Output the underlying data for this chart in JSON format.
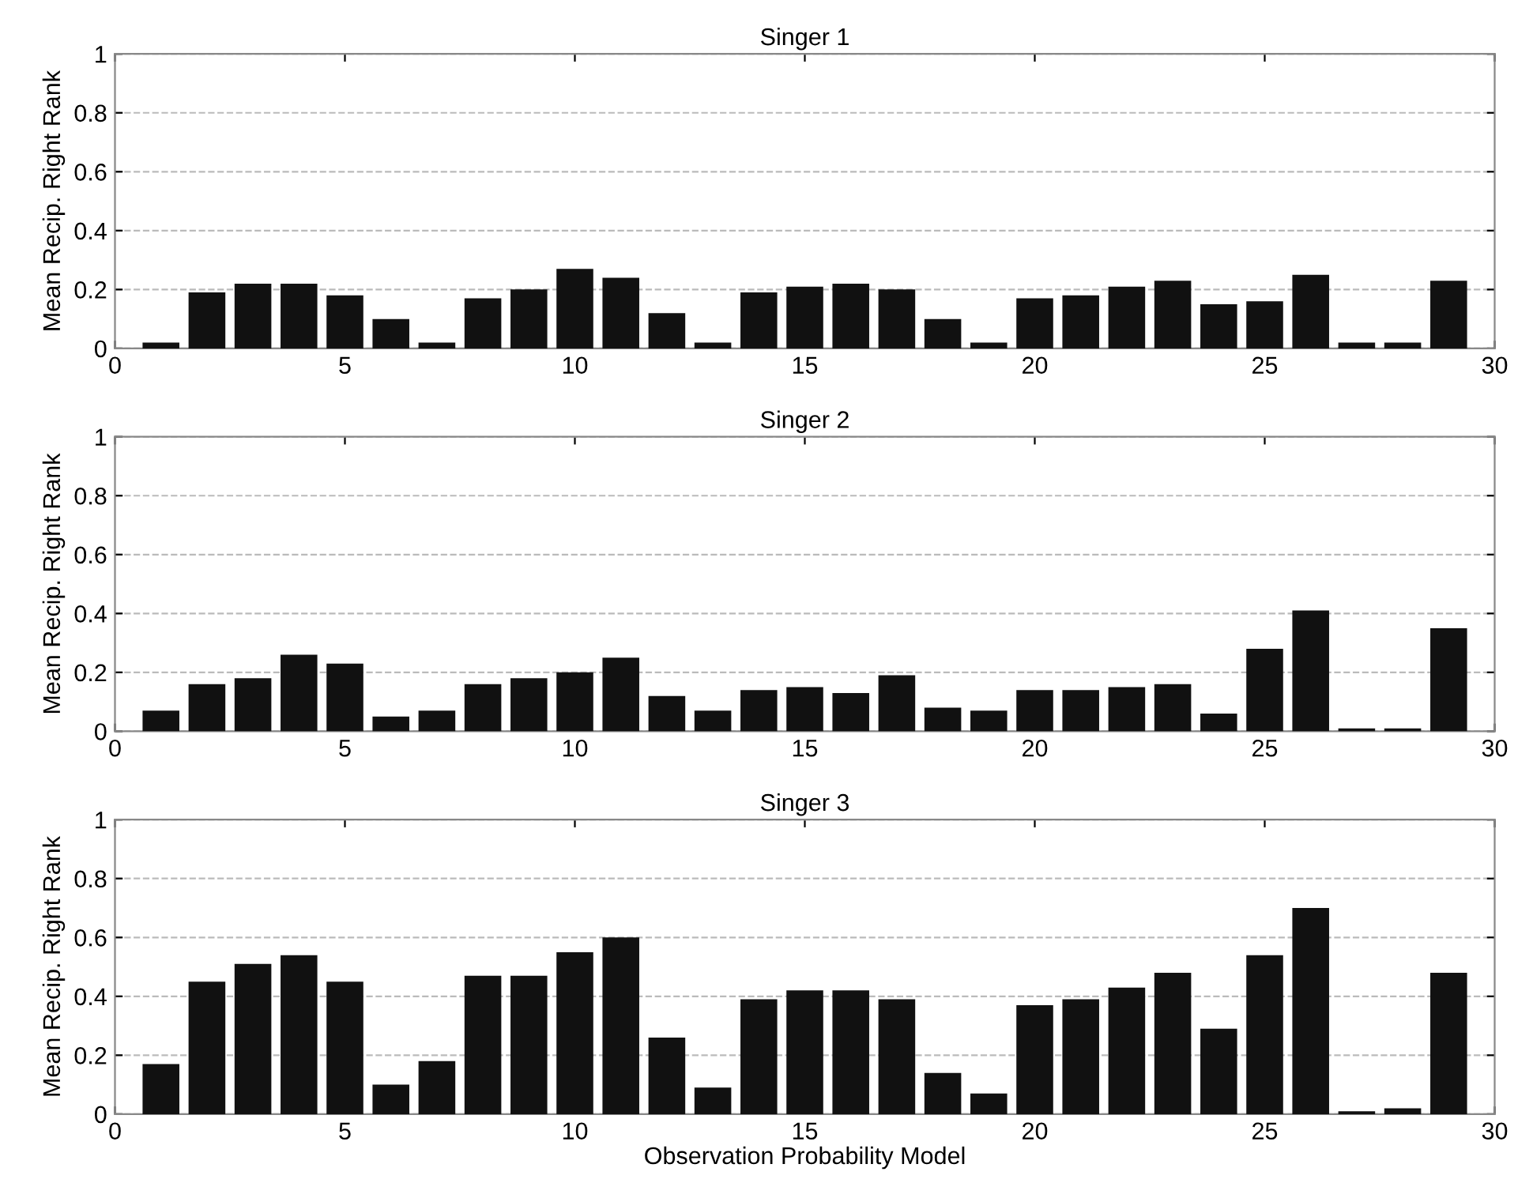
{
  "chart_data": [
    {
      "type": "bar",
      "title": "Singer 1",
      "ylabel": "Mean Recip. Right Rank",
      "x": [
        1,
        2,
        3,
        4,
        5,
        6,
        7,
        8,
        9,
        10,
        11,
        12,
        13,
        14,
        15,
        16,
        17,
        18,
        19,
        20,
        21,
        22,
        23,
        24,
        25,
        26,
        27,
        28,
        29
      ],
      "series": [
        {
          "color": "#111111",
          "values": [
            0.02,
            0.19,
            0.22,
            0.22,
            0.18,
            0.1,
            0.02,
            0.17,
            0.2,
            0.27,
            0.24,
            0.12,
            0.02,
            0.19,
            0.21,
            0.22,
            0.2,
            0.1,
            0.02,
            0.17,
            0.18,
            0.21,
            0.23,
            0.15,
            0.16,
            0.25,
            0.02,
            0.02,
            0.23
          ]
        }
      ],
      "xlim": [
        0,
        30
      ],
      "xticks": [
        0,
        5,
        10,
        15,
        20,
        25,
        30
      ],
      "ylim": [
        0,
        1
      ],
      "yticks": [
        0,
        0.2,
        0.4,
        0.6,
        0.8,
        1
      ],
      "grid": "y"
    },
    {
      "type": "bar",
      "title": "Singer 2",
      "ylabel": "Mean Recip. Right Rank",
      "x": [
        1,
        2,
        3,
        4,
        5,
        6,
        7,
        8,
        9,
        10,
        11,
        12,
        13,
        14,
        15,
        16,
        17,
        18,
        19,
        20,
        21,
        22,
        23,
        24,
        25,
        26,
        27,
        28,
        29
      ],
      "series": [
        {
          "color": "#111111",
          "values": [
            0.07,
            0.16,
            0.18,
            0.26,
            0.23,
            0.05,
            0.07,
            0.16,
            0.18,
            0.2,
            0.25,
            0.12,
            0.07,
            0.14,
            0.15,
            0.13,
            0.19,
            0.08,
            0.07,
            0.14,
            0.14,
            0.15,
            0.16,
            0.06,
            0.28,
            0.41,
            0.01,
            0.01,
            0.35
          ]
        }
      ],
      "xlim": [
        0,
        30
      ],
      "xticks": [
        0,
        5,
        10,
        15,
        20,
        25,
        30
      ],
      "ylim": [
        0,
        1
      ],
      "yticks": [
        0,
        0.2,
        0.4,
        0.6,
        0.8,
        1
      ],
      "grid": "y"
    },
    {
      "type": "bar",
      "title": "Singer 3",
      "xlabel": "Observation Probability Model",
      "ylabel": "Mean Recip. Right Rank",
      "x": [
        1,
        2,
        3,
        4,
        5,
        6,
        7,
        8,
        9,
        10,
        11,
        12,
        13,
        14,
        15,
        16,
        17,
        18,
        19,
        20,
        21,
        22,
        23,
        24,
        25,
        26,
        27,
        28,
        29
      ],
      "series": [
        {
          "color": "#111111",
          "values": [
            0.17,
            0.45,
            0.51,
            0.54,
            0.45,
            0.1,
            0.18,
            0.47,
            0.47,
            0.55,
            0.6,
            0.26,
            0.09,
            0.39,
            0.42,
            0.42,
            0.39,
            0.14,
            0.07,
            0.37,
            0.39,
            0.43,
            0.48,
            0.29,
            0.54,
            0.7,
            0.01,
            0.02,
            0.48
          ]
        }
      ],
      "xlim": [
        0,
        30
      ],
      "xticks": [
        0,
        5,
        10,
        15,
        20,
        25,
        30
      ],
      "ylim": [
        0,
        1
      ],
      "yticks": [
        0,
        0.2,
        0.4,
        0.6,
        0.8,
        1
      ],
      "grid": "y"
    }
  ]
}
